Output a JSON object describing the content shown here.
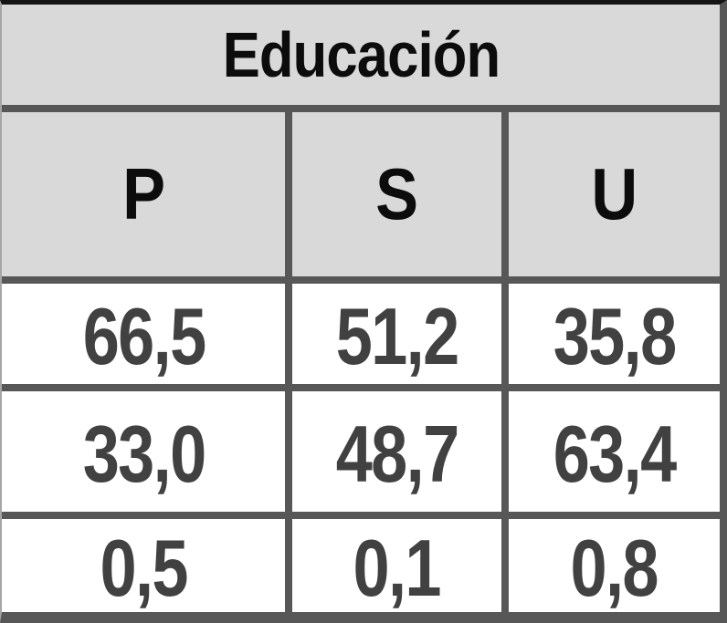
{
  "table": {
    "title": "Educación",
    "columns": [
      "P",
      "S",
      "U"
    ],
    "rows": [
      [
        "66,5",
        "51,2",
        "35,8"
      ],
      [
        "33,0",
        "48,7",
        "63,4"
      ],
      [
        "0,5",
        "0,1",
        "0,8"
      ]
    ]
  },
  "chart_data": {
    "type": "table",
    "title": "Educación",
    "columns": [
      "P",
      "S",
      "U"
    ],
    "rows": [
      [
        66.5,
        51.2,
        35.8
      ],
      [
        33.0,
        48.7,
        63.4
      ],
      [
        0.5,
        0.1,
        0.8
      ]
    ],
    "decimal_separator": ","
  },
  "colors": {
    "header_bg": "#d9d9d9",
    "cell_bg": "#ffffff",
    "grid_border": "#575757",
    "top_border": "#151515",
    "header_text": "#0c0c0c",
    "data_text": "#414141"
  }
}
